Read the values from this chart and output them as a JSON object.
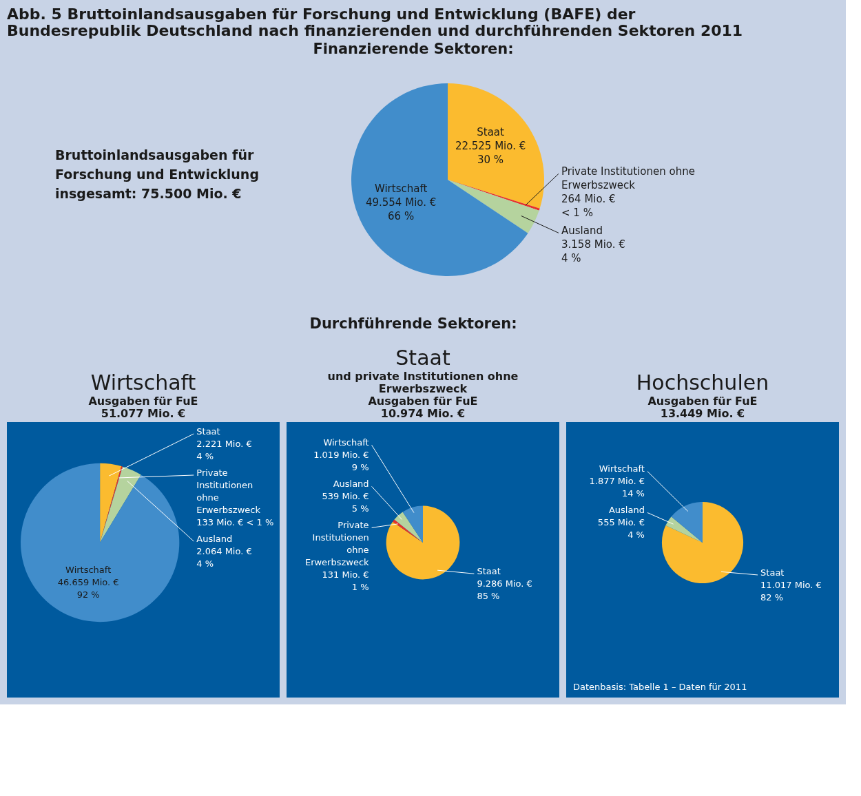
{
  "chart_data": [
    {
      "type": "pie",
      "title": "Abb. 5 Bruttoinlandsausgaben für Forschung und Entwicklung (BAFE) der Bundesrepublik Deutschland nach finanzierenden und durchführenden Sektoren 2011",
      "subtitle": "Finanzierende Sektoren:",
      "annotations": [
        "Bruttoinlandsausgaben für Forschung und Entwicklung insgesamt: 75.500 Mio. €",
        "Durchführende Sektoren:"
      ],
      "categories": [
        "Staat",
        "Private Institutionen ohne Erwerbszweck",
        "Ausland",
        "Wirtschaft"
      ],
      "values": [
        22525,
        264,
        3158,
        49554
      ],
      "colors": [
        "#fbbb2f",
        "#e8302a",
        "#b5d39e",
        "#418dcb"
      ],
      "value_labels": [
        "22.525 Mio. €\n30 %",
        "264 Mio. €\n< 1 %",
        "3.158 Mio. €\n4 %",
        "49.554 Mio. €\n66 %"
      ]
    },
    {
      "type": "pie",
      "title": "Wirtschaft",
      "subtitle": "Ausgaben für FuE\n51.077 Mio. €",
      "categories": [
        "Staat",
        "Private Institutionen ohne Erwerbszweck",
        "Ausland",
        "Wirtschaft"
      ],
      "values": [
        2221,
        133,
        2064,
        46659
      ],
      "colors": [
        "#fbbb2f",
        "#e8302a",
        "#b5d39e",
        "#418dcb"
      ],
      "value_labels": [
        "2.221 Mio. €\n4 %",
        "133 Mio. €  < 1 %",
        "2.064 Mio. €\n4 %",
        "46.659 Mio. €\n92 %"
      ]
    },
    {
      "type": "pie",
      "title": "Staat",
      "subtitle": "und private Institutionen ohne Erwerbszweck\nAusgaben für FuE\n10.974 Mio. €",
      "categories": [
        "Staat",
        "Private Institutionen ohne Erwerbszweck",
        "Ausland",
        "Wirtschaft"
      ],
      "values": [
        9286,
        131,
        539,
        1019
      ],
      "colors": [
        "#fbbb2f",
        "#e8302a",
        "#b5d39e",
        "#418dcb"
      ],
      "value_labels": [
        "9.286 Mio. €\n85 %",
        "131 Mio. €\n1 %",
        "539 Mio. €\n5 %",
        "1.019 Mio. €\n9 %"
      ]
    },
    {
      "type": "pie",
      "title": "Hochschulen",
      "subtitle": "Ausgaben für FuE\n13.449 Mio. €",
      "annotations": [
        "Datenbasis: Tabelle 1 – Daten für 2011"
      ],
      "categories": [
        "Staat",
        "Ausland",
        "Wirtschaft"
      ],
      "values": [
        11017,
        555,
        1877
      ],
      "colors": [
        "#fbbb2f",
        "#b5d39e",
        "#418dcb"
      ],
      "value_labels": [
        "11.017 Mio. €\n82 %",
        "555 Mio. €\n4 %",
        "1.877 Mio. €\n14 %"
      ]
    }
  ]
}
